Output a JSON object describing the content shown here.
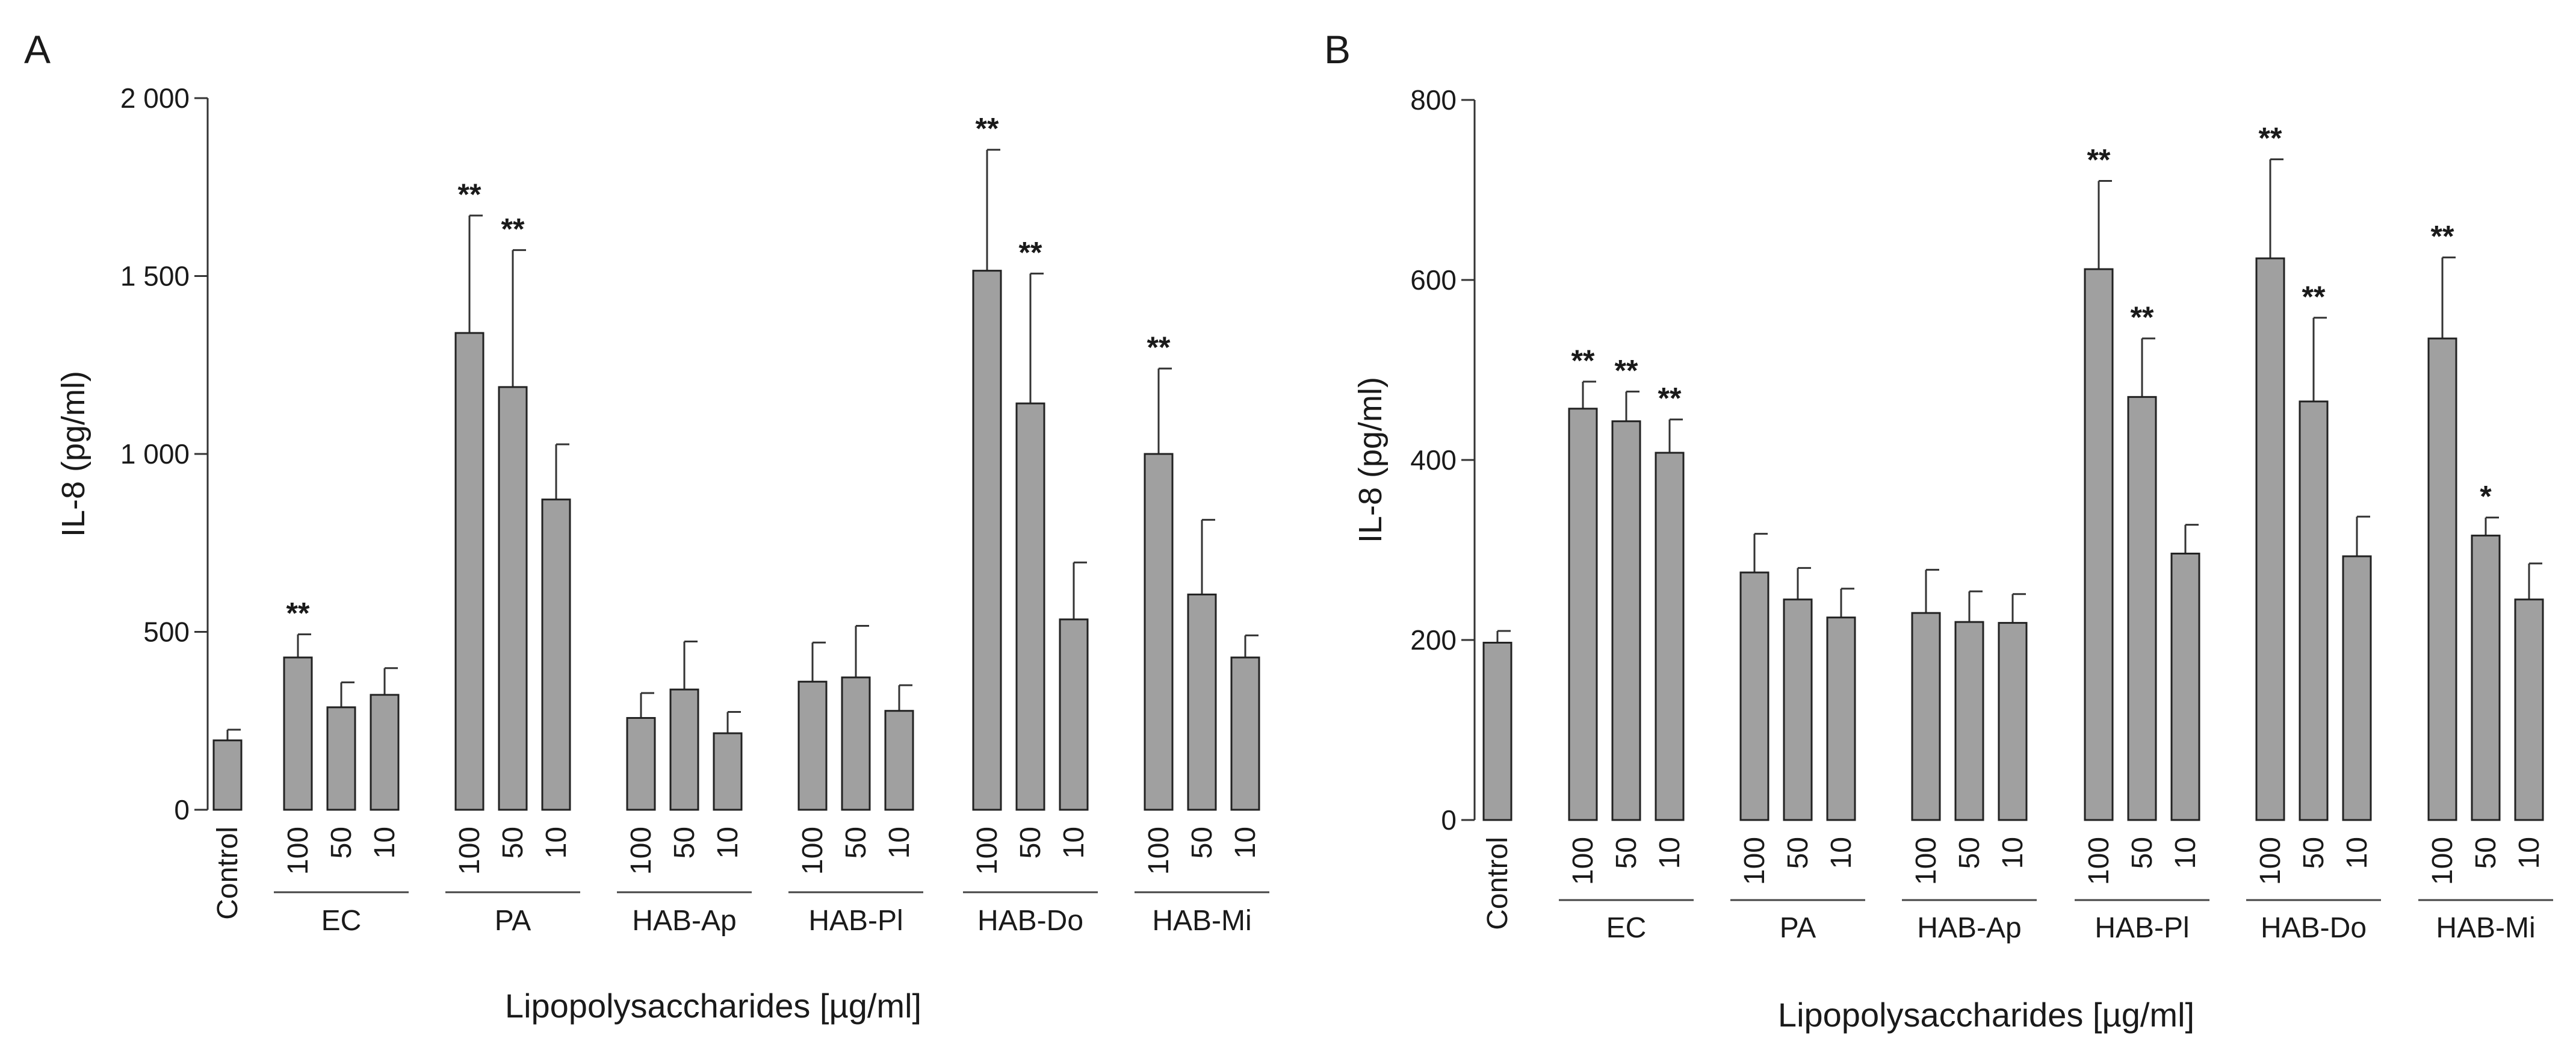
{
  "chart_data": [
    {
      "panel": "A",
      "type": "bar",
      "ylabel": "IL-8 (pg/ml)",
      "xlabel": "Lipopolysaccharides [µg/ml]",
      "ylim": [
        0,
        2000
      ],
      "yticks": [
        0,
        500,
        1000,
        1500,
        2000
      ],
      "ytick_labels": [
        "0",
        "500",
        "1 000",
        "1 500",
        "2 000"
      ],
      "bar_color": "#a0a0a0",
      "groups": [
        {
          "name": "",
          "bars": [
            {
              "label": "Control",
              "value": 195,
              "error": 30,
              "sig": ""
            }
          ]
        },
        {
          "name": "EC",
          "bars": [
            {
              "label": "100",
              "value": 428,
              "error": 65,
              "sig": "**"
            },
            {
              "label": "50",
              "value": 288,
              "error": 70,
              "sig": ""
            },
            {
              "label": "10",
              "value": 323,
              "error": 75,
              "sig": ""
            }
          ]
        },
        {
          "name": "PA",
          "bars": [
            {
              "label": "100",
              "value": 1340,
              "error": 330,
              "sig": "**"
            },
            {
              "label": "50",
              "value": 1188,
              "error": 385,
              "sig": "**"
            },
            {
              "label": "10",
              "value": 872,
              "error": 155,
              "sig": ""
            }
          ]
        },
        {
          "name": "HAB-Ap",
          "bars": [
            {
              "label": "100",
              "value": 258,
              "error": 70,
              "sig": ""
            },
            {
              "label": "50",
              "value": 338,
              "error": 135,
              "sig": ""
            },
            {
              "label": "10",
              "value": 215,
              "error": 60,
              "sig": ""
            }
          ]
        },
        {
          "name": "HAB-Pl",
          "bars": [
            {
              "label": "100",
              "value": 360,
              "error": 110,
              "sig": ""
            },
            {
              "label": "50",
              "value": 372,
              "error": 145,
              "sig": ""
            },
            {
              "label": "10",
              "value": 278,
              "error": 72,
              "sig": ""
            }
          ]
        },
        {
          "name": "HAB-Do",
          "bars": [
            {
              "label": "100",
              "value": 1515,
              "error": 340,
              "sig": "**"
            },
            {
              "label": "50",
              "value": 1142,
              "error": 365,
              "sig": "**"
            },
            {
              "label": "10",
              "value": 535,
              "error": 160,
              "sig": ""
            }
          ]
        },
        {
          "name": "HAB-Mi",
          "bars": [
            {
              "label": "100",
              "value": 1000,
              "error": 240,
              "sig": "**"
            },
            {
              "label": "50",
              "value": 605,
              "error": 210,
              "sig": ""
            },
            {
              "label": "10",
              "value": 428,
              "error": 62,
              "sig": ""
            }
          ]
        }
      ]
    },
    {
      "panel": "B",
      "type": "bar",
      "ylabel": "IL-8 (pg/ml)",
      "xlabel": "Lipopolysaccharides [µg/ml]",
      "ylim": [
        0,
        800
      ],
      "yticks": [
        0,
        200,
        400,
        600,
        800
      ],
      "ytick_labels": [
        "0",
        "200",
        "400",
        "600",
        "800"
      ],
      "bar_color": "#a0a0a0",
      "groups": [
        {
          "name": "",
          "bars": [
            {
              "label": "Control",
              "value": 197,
              "error": 13,
              "sig": ""
            }
          ]
        },
        {
          "name": "EC",
          "bars": [
            {
              "label": "100",
              "value": 457,
              "error": 30,
              "sig": "**"
            },
            {
              "label": "50",
              "value": 443,
              "error": 33,
              "sig": "**"
            },
            {
              "label": "10",
              "value": 408,
              "error": 37,
              "sig": "**"
            }
          ]
        },
        {
          "name": "PA",
          "bars": [
            {
              "label": "100",
              "value": 275,
              "error": 43,
              "sig": ""
            },
            {
              "label": "50",
              "value": 245,
              "error": 35,
              "sig": ""
            },
            {
              "label": "10",
              "value": 225,
              "error": 32,
              "sig": ""
            }
          ]
        },
        {
          "name": "HAB-Ap",
          "bars": [
            {
              "label": "100",
              "value": 230,
              "error": 48,
              "sig": ""
            },
            {
              "label": "50",
              "value": 220,
              "error": 34,
              "sig": ""
            },
            {
              "label": "10",
              "value": 219,
              "error": 32,
              "sig": ""
            }
          ]
        },
        {
          "name": "HAB-Pl",
          "bars": [
            {
              "label": "100",
              "value": 612,
              "error": 98,
              "sig": "**"
            },
            {
              "label": "50",
              "value": 470,
              "error": 65,
              "sig": "**"
            },
            {
              "label": "10",
              "value": 296,
              "error": 32,
              "sig": ""
            }
          ]
        },
        {
          "name": "HAB-Do",
          "bars": [
            {
              "label": "100",
              "value": 624,
              "error": 110,
              "sig": "**"
            },
            {
              "label": "50",
              "value": 465,
              "error": 93,
              "sig": "**"
            },
            {
              "label": "10",
              "value": 293,
              "error": 44,
              "sig": ""
            }
          ]
        },
        {
          "name": "HAB-Mi",
          "bars": [
            {
              "label": "100",
              "value": 535,
              "error": 90,
              "sig": "**"
            },
            {
              "label": "50",
              "value": 316,
              "error": 20,
              "sig": "*"
            },
            {
              "label": "10",
              "value": 245,
              "error": 40,
              "sig": ""
            }
          ]
        }
      ]
    }
  ]
}
